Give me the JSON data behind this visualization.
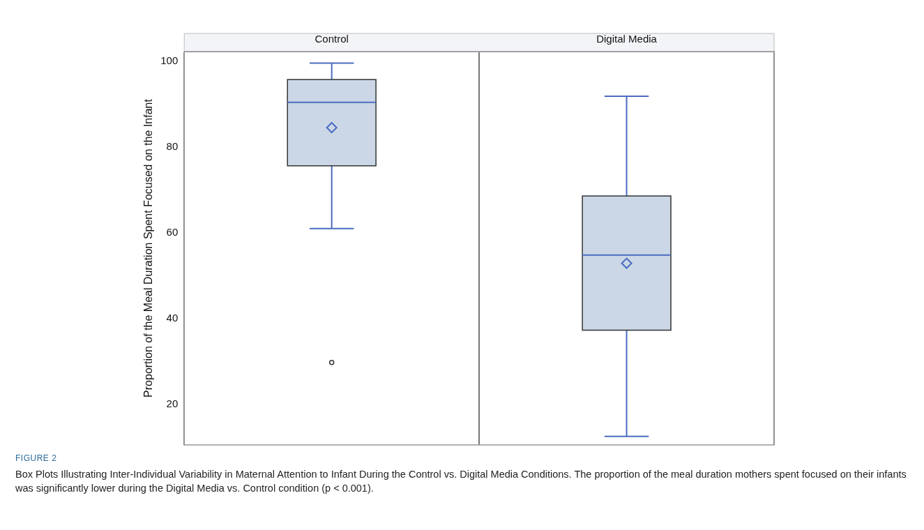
{
  "chart_data": {
    "type": "box",
    "categories": [
      "Control",
      "Digital Media"
    ],
    "ylabel": "Proportion of the Meal Duration Spent Focused on the Infant",
    "ylim": [
      10.6,
      102.2
    ],
    "yticks": [
      20,
      40,
      60,
      80,
      100
    ],
    "grid": false,
    "legend": false,
    "series": [
      {
        "color": "#cbd7e6",
        "boxes": [
          {
            "low": 61,
            "q1": 75.6,
            "median": 90.4,
            "q3": 95.7,
            "high": 99.5,
            "mean": 84.5,
            "outliers": [
              29.8
            ]
          },
          {
            "low": 12.6,
            "q1": 37.3,
            "median": 54.8,
            "q3": 68.6,
            "high": 91.8,
            "mean": 52.9
          }
        ]
      }
    ],
    "annotations": [
      "FIGURE 2",
      "Box Plots Illustrating Inter-Individual Variability in Maternal Attention to Infant During the Control vs. Digital Media Conditions. The proportion of the meal duration mothers spent focused on their infants was significantly lower during the Digital Media vs. Control condition (p < 0.001)."
    ]
  }
}
